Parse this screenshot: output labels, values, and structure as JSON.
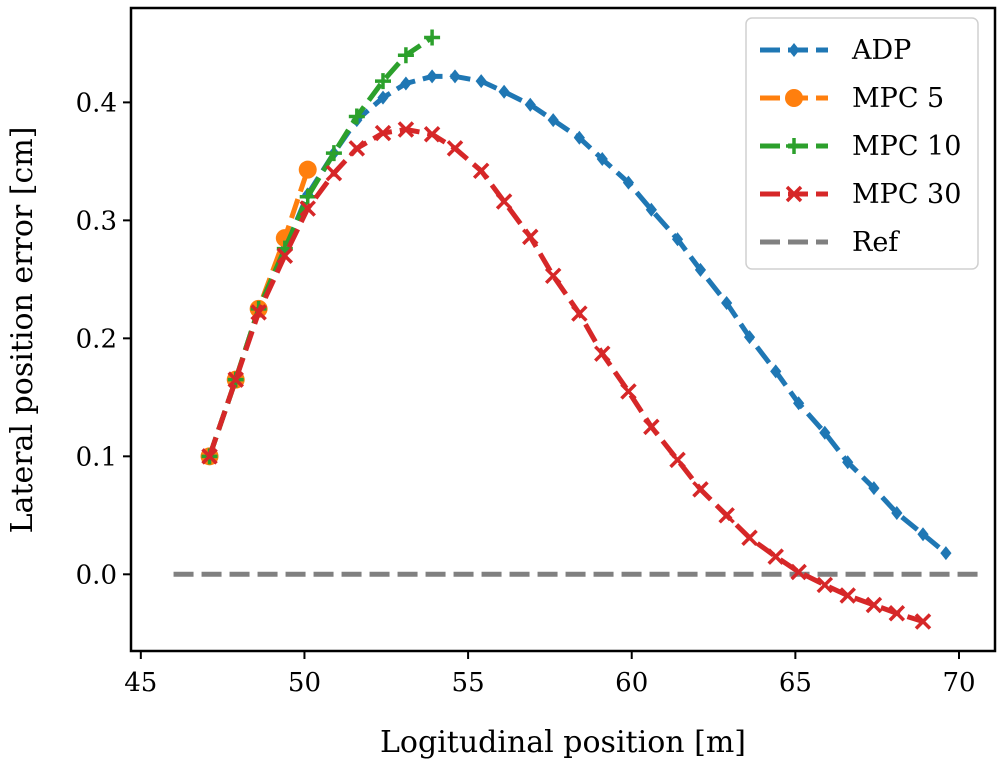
{
  "chart_data": {
    "type": "line",
    "xlabel": "Logitudinal position [m]",
    "ylabel": "Lateral position error [cm]",
    "xlim": [
      44.7,
      71.1
    ],
    "ylim": [
      -0.065,
      0.48
    ],
    "xticks": [
      45,
      50,
      55,
      60,
      65,
      70
    ],
    "xtick_labels": [
      "45",
      "50",
      "55",
      "60",
      "65",
      "70"
    ],
    "yticks": [
      0.0,
      0.1,
      0.2,
      0.3,
      0.4
    ],
    "ytick_labels": [
      "0.0",
      "0.1",
      "0.2",
      "0.3",
      "0.4"
    ],
    "grid": false,
    "legend_position": "top-right",
    "series": [
      {
        "name": "ADP",
        "color": "#1f77b4",
        "marker": "diamond",
        "x": [
          47.1,
          47.9,
          48.6,
          49.4,
          50.1,
          50.9,
          51.6,
          52.4,
          53.1,
          53.9,
          54.6,
          55.4,
          56.1,
          56.9,
          57.6,
          58.4,
          59.1,
          59.9,
          60.6,
          61.4,
          62.1,
          62.9,
          63.6,
          64.4,
          65.1,
          65.9,
          66.6,
          67.4,
          68.1,
          68.9,
          69.6
        ],
        "y": [
          0.1,
          0.165,
          0.225,
          0.276,
          0.322,
          0.357,
          0.385,
          0.404,
          0.416,
          0.422,
          0.422,
          0.418,
          0.409,
          0.398,
          0.385,
          0.37,
          0.352,
          0.332,
          0.309,
          0.284,
          0.258,
          0.23,
          0.201,
          0.172,
          0.145,
          0.12,
          0.095,
          0.073,
          0.052,
          0.034,
          0.018
        ]
      },
      {
        "name": "MPC 5",
        "color": "#ff7f0e",
        "marker": "circle",
        "x": [
          47.1,
          47.9,
          48.6,
          49.4,
          50.1
        ],
        "y": [
          0.1,
          0.165,
          0.225,
          0.285,
          0.343
        ]
      },
      {
        "name": "MPC 10",
        "color": "#2ca02c",
        "marker": "plus",
        "x": [
          47.1,
          47.9,
          48.6,
          49.4,
          50.1,
          50.9,
          51.6,
          52.4,
          53.1,
          53.9
        ],
        "y": [
          0.1,
          0.165,
          0.225,
          0.276,
          0.32,
          0.357,
          0.388,
          0.418,
          0.44,
          0.455
        ]
      },
      {
        "name": "MPC 30",
        "color": "#d62728",
        "marker": "x",
        "x": [
          47.1,
          47.9,
          48.6,
          49.4,
          50.1,
          50.9,
          51.6,
          52.4,
          53.1,
          53.9,
          54.6,
          55.4,
          56.1,
          56.9,
          57.6,
          58.4,
          59.1,
          59.9,
          60.6,
          61.4,
          62.1,
          62.9,
          63.6,
          64.4,
          65.1,
          65.9,
          66.6,
          67.4,
          68.1,
          68.9
        ],
        "y": [
          0.1,
          0.165,
          0.222,
          0.27,
          0.31,
          0.34,
          0.361,
          0.374,
          0.377,
          0.373,
          0.361,
          0.342,
          0.316,
          0.286,
          0.253,
          0.221,
          0.187,
          0.155,
          0.125,
          0.097,
          0.072,
          0.05,
          0.031,
          0.015,
          0.002,
          -0.009,
          -0.018,
          -0.026,
          -0.033,
          -0.04
        ]
      },
      {
        "name": "Ref",
        "color": "#808080",
        "marker": "none",
        "x": [
          46.0,
          70.6
        ],
        "y": [
          0.0,
          0.0
        ]
      }
    ]
  }
}
